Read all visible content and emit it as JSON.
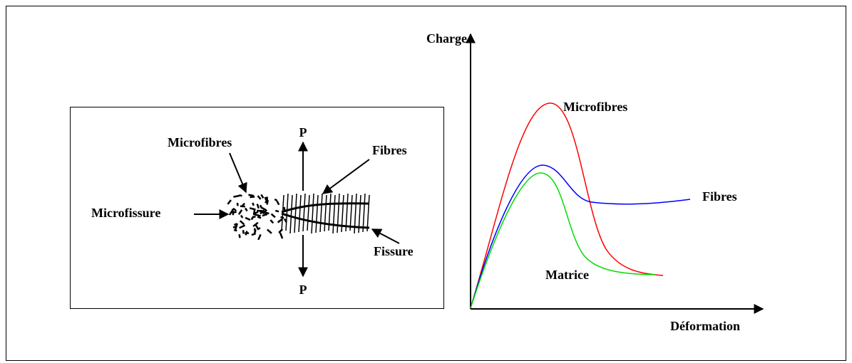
{
  "schematic": {
    "labels": {
      "microfibres": "Microfibres",
      "load_top": "P",
      "fibres": "Fibres",
      "microfissure": "Microfissure",
      "fissure": "Fissure",
      "load_bottom": "P"
    }
  },
  "graph": {
    "y_axis": "Charge",
    "x_axis": "Déformation",
    "curves": {
      "microfibres": "Microfibres",
      "fibres": "Fibres",
      "matrice": "Matrice"
    }
  }
}
